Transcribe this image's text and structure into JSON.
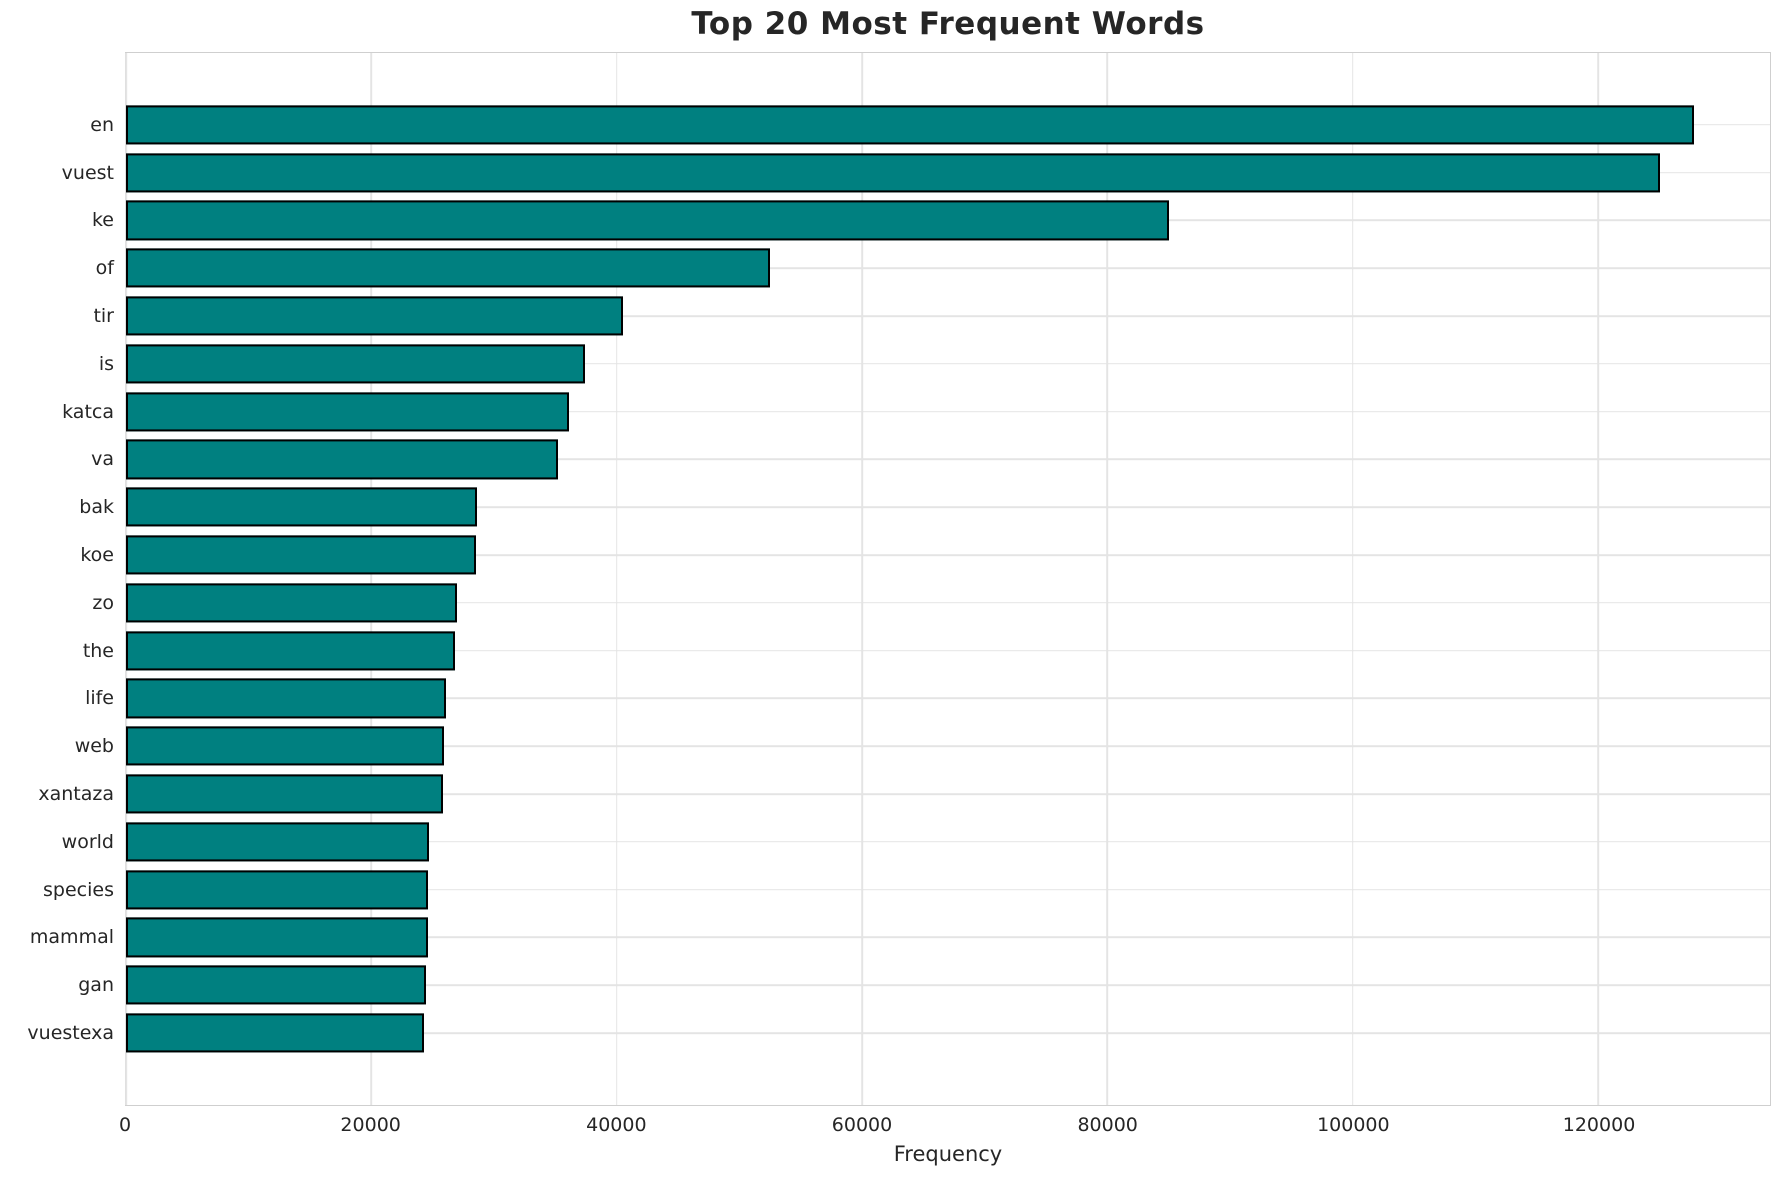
{
  "chart_data": {
    "type": "bar",
    "orientation": "horizontal",
    "title": "Top 20 Most Frequent Words",
    "xlabel": "Frequency",
    "ylabel": "",
    "categories": [
      "en",
      "vuest",
      "ke",
      "of",
      "tir",
      "is",
      "katca",
      "va",
      "bak",
      "koe",
      "zo",
      "the",
      "life",
      "web",
      "xantaza",
      "world",
      "species",
      "mammal",
      "gan",
      "vuestexa"
    ],
    "values": [
      127800,
      125000,
      85000,
      52500,
      40500,
      37400,
      36100,
      35200,
      28600,
      28500,
      27000,
      26800,
      26100,
      25900,
      25800,
      24700,
      24650,
      24600,
      24450,
      24300
    ],
    "x_ticks": [
      0,
      20000,
      40000,
      60000,
      80000,
      100000,
      120000
    ],
    "xlim": [
      0,
      134000
    ],
    "grid": true,
    "bar_color": "#008080",
    "bar_edge_color": "#000000",
    "grid_color": "#e4e4e4",
    "text_color": "#262626"
  }
}
